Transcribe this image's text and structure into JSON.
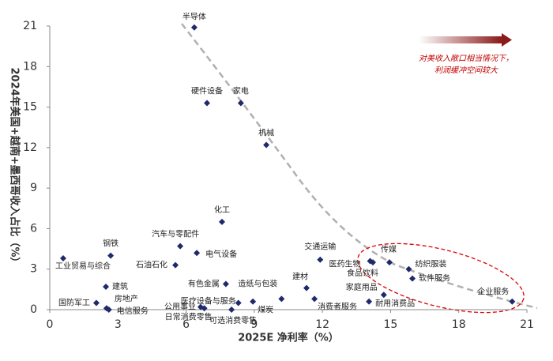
{
  "chart_data": {
    "type": "scatter",
    "x_label": "2025E 净利率（%）",
    "y_label": "2024年美国+越南+墨西哥收入占比（%）",
    "annotation": [
      "对美收入敞口相当情况下，",
      "利润缓冲空间较大"
    ],
    "color": "#1f2a6b",
    "labels": [
      "半导体",
      "硬件设备",
      "家电",
      "机械",
      "化工",
      "汽车与零配件",
      "电气设备",
      "石油石化",
      "钢铁",
      "工业贸易与综合",
      "建筑",
      "房地产",
      "电信服务",
      "国防军工",
      "有色金属",
      "医疗设备与服务",
      "公用事业",
      "日常消费零售",
      "可选消费零售",
      "煤炭",
      "造纸与包装",
      "建材",
      "交通运输",
      "医药生物",
      "传媒",
      "食品饮料",
      "纺织服装",
      "软件服务",
      "家庭用品",
      "消费者服务",
      "耐用消费品",
      "企业服务"
    ],
    "x": [
      6.36,
      6.92,
      8.41,
      9.53,
      7.58,
      5.74,
      6.47,
      5.53,
      2.68,
      0.59,
      2.47,
      2.5,
      2.6,
      2.05,
      7.75,
      8.3,
      6.64,
      6.8,
      8.0,
      8.94,
      10.2,
      11.3,
      11.9,
      14.1,
      14.22,
      14.95,
      15.8,
      15.96,
      14.7,
      11.65,
      14.05,
      20.35
    ],
    "values": [
      20.9,
      15.3,
      15.3,
      12.2,
      6.5,
      4.7,
      4.2,
      3.3,
      4.0,
      3.8,
      1.7,
      0.1,
      0.0,
      0.5,
      1.9,
      0.5,
      0.2,
      0.1,
      0.0,
      0.6,
      0.8,
      1.6,
      3.7,
      3.6,
      3.5,
      3.5,
      3.0,
      2.3,
      1.1,
      0.8,
      0.6,
      0.6
    ],
    "xlim": [
      0,
      21
    ],
    "xticks": [
      0,
      3,
      6,
      9,
      12,
      15,
      18,
      21
    ],
    "ylim": [
      0,
      21
    ],
    "yticks": [
      0,
      3,
      6,
      9,
      12,
      15,
      18,
      21
    ]
  }
}
